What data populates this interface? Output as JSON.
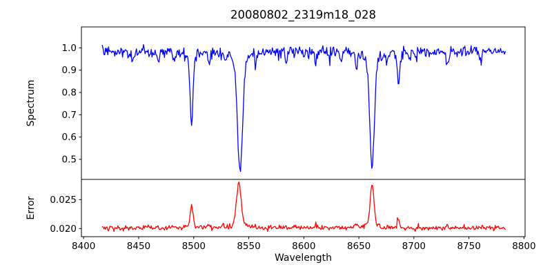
{
  "chart_data": {
    "type": "line",
    "title": "20080802_2319m18_028",
    "xlabel": "Wavelength",
    "grid": false,
    "legend": "none",
    "x_range": [
      8417,
      8783
    ],
    "xlim": [
      8398,
      8801
    ],
    "xticks": {
      "values": [
        8400,
        8450,
        8500,
        8550,
        8600,
        8650,
        8700,
        8750,
        8800
      ],
      "labels": [
        "8400",
        "8450",
        "8500",
        "8550",
        "8600",
        "8650",
        "8700",
        "8750",
        "8800"
      ]
    },
    "n_points": 520,
    "seed": 42,
    "subplots": [
      {
        "name": "spectrum",
        "ylabel": "Spectrum",
        "color": "#0000ff",
        "direction": "absorption",
        "ylim": [
          0.41,
          1.094
        ],
        "yticks": {
          "values": [
            1.0,
            0.9,
            0.8,
            0.7,
            0.6,
            0.5
          ],
          "labels": [
            "1.0",
            "0.9",
            "0.8",
            "0.7",
            "0.6",
            "0.5"
          ]
        },
        "baseline": 0.986,
        "noise_sigma": 0.012,
        "noise_skew": 0.025,
        "features": [
          {
            "center": 8498,
            "amp": 0.33,
            "width": 1.3
          },
          {
            "center": 8542,
            "amp": 0.54,
            "width": 2.2
          },
          {
            "center": 8662,
            "amp": 0.52,
            "width": 2.0
          },
          {
            "center": 8686,
            "amp": 0.15,
            "width": 1.1
          },
          {
            "center": 8445,
            "amp": 0.045,
            "width": 0.9
          },
          {
            "center": 8468,
            "amp": 0.05,
            "width": 0.9
          },
          {
            "center": 8482,
            "amp": 0.04,
            "width": 0.8
          },
          {
            "center": 8514,
            "amp": 0.06,
            "width": 0.9
          },
          {
            "center": 8529,
            "amp": 0.04,
            "width": 0.8
          },
          {
            "center": 8556,
            "amp": 0.04,
            "width": 0.8
          },
          {
            "center": 8584,
            "amp": 0.05,
            "width": 0.9
          },
          {
            "center": 8611,
            "amp": 0.05,
            "width": 0.9
          },
          {
            "center": 8634,
            "amp": 0.04,
            "width": 0.8
          },
          {
            "center": 8648,
            "amp": 0.07,
            "width": 0.9
          },
          {
            "center": 8675,
            "amp": 0.05,
            "width": 0.8
          },
          {
            "center": 8702,
            "amp": 0.04,
            "width": 0.8
          },
          {
            "center": 8730,
            "amp": 0.06,
            "width": 0.9
          },
          {
            "center": 8760,
            "amp": 0.04,
            "width": 0.8
          }
        ]
      },
      {
        "name": "error",
        "ylabel": "Error",
        "color": "#ff0000",
        "direction": "emission",
        "ylim": [
          0.0186,
          0.0285
        ],
        "yticks": {
          "values": [
            0.025,
            0.02
          ],
          "labels": [
            "0.025",
            "0.020"
          ]
        },
        "baseline": 0.0201,
        "noise_sigma": 0.00022,
        "noise_skew": 0.0006,
        "features": [
          {
            "center": 8498,
            "amp": 0.0037,
            "width": 1.3
          },
          {
            "center": 8541,
            "amp": 0.008,
            "width": 2.0
          },
          {
            "center": 8662,
            "amp": 0.0077,
            "width": 1.6
          },
          {
            "center": 8686,
            "amp": 0.0014,
            "width": 1.0
          },
          {
            "center": 8648,
            "amp": 0.0007,
            "width": 0.9
          },
          {
            "center": 8514,
            "amp": 0.0006,
            "width": 0.9
          },
          {
            "center": 8611,
            "amp": 0.0005,
            "width": 0.9
          },
          {
            "center": 8730,
            "amp": 0.0005,
            "width": 0.9
          }
        ]
      }
    ]
  }
}
